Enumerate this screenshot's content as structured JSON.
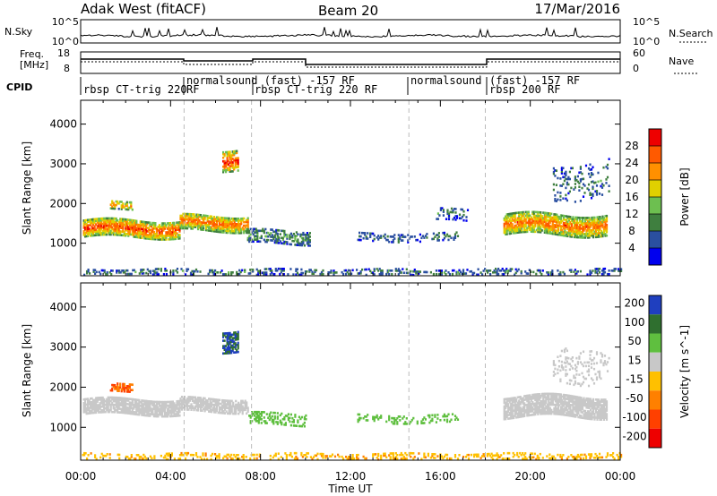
{
  "header": {
    "station": "Adak West (fitACF)",
    "beam": "Beam 20",
    "date": "17/Mar/2016"
  },
  "sky_panel": {
    "left_label": "N.Sky",
    "right_label": "N.Search",
    "left_ticks": [
      "10^5",
      "10^0"
    ],
    "right_ticks": [
      "10^5",
      "10^0"
    ],
    "line_color": "#000000"
  },
  "freq_panel": {
    "left_label_top": "Freq.",
    "left_label_bottom": "[MHz]",
    "left_ticks": [
      "18",
      "8"
    ],
    "right_ticks": [
      "60",
      "0"
    ],
    "right_label": "Nave"
  },
  "cpid": {
    "label": "CPID",
    "segments": [
      {
        "text": "rbsp CT-trig 220",
        "start": 0.2,
        "end": 4.6
      },
      {
        "text": "normalsound (fast) -157 RF",
        "start": 4.6,
        "end": 7.6,
        "extra": "RF"
      },
      {
        "text": "rbsp CT-trig 220 RF",
        "start": 7.6,
        "end": 14.6
      },
      {
        "text": "normalsound",
        "start": 14.6,
        "end": 18.0
      },
      {
        "text": "(fast) -157 RF",
        "start": 18.0,
        "end": 24.0
      },
      {
        "text": "rbsp 200 RF",
        "start": 18.0,
        "end": 24.0
      }
    ]
  },
  "chart_data": [
    {
      "type": "heatmap",
      "name": "power-panel",
      "ylabel": "Slant Range [km]",
      "xlabel": "Time UT",
      "x_range": [
        0,
        24
      ],
      "y_range": [
        180,
        4600
      ],
      "y_ticks": [
        1000,
        2000,
        3000,
        4000
      ],
      "x_ticks": [
        "00:00",
        "04:00",
        "08:00",
        "12:00",
        "16:00",
        "20:00",
        "00:00"
      ],
      "mode_boundaries_ut": [
        4.6,
        7.6,
        14.6,
        18.0
      ],
      "colorbar": {
        "label": "Power [dB]",
        "ticks": [
          4,
          8,
          12,
          16,
          20,
          24,
          28
        ],
        "range": [
          0,
          32
        ],
        "colors": [
          "#0000ee",
          "#2a4fa0",
          "#3f7f3f",
          "#6dbf50",
          "#e0d000",
          "#ff9000",
          "#ff5a00",
          "#ee0000"
        ]
      },
      "regions": [
        {
          "t0": 0.1,
          "t1": 4.4,
          "r_center": 1350,
          "r_width": 420,
          "level": 24,
          "density": 0.85
        },
        {
          "t0": 1.3,
          "t1": 2.3,
          "r_center": 1950,
          "r_width": 200,
          "level": 20,
          "density": 0.55
        },
        {
          "t0": 4.4,
          "t1": 7.4,
          "r_center": 1500,
          "r_width": 400,
          "level": 22,
          "density": 0.8
        },
        {
          "t0": 6.3,
          "t1": 7.0,
          "r_center": 3100,
          "r_width": 500,
          "level": 26,
          "density": 0.7
        },
        {
          "t0": 7.4,
          "t1": 10.2,
          "r_center": 1150,
          "r_width": 350,
          "level": 10,
          "density": 0.45
        },
        {
          "t0": 12.3,
          "t1": 16.8,
          "r_center": 1150,
          "r_width": 220,
          "level": 8,
          "density": 0.25
        },
        {
          "t0": 15.8,
          "t1": 17.2,
          "r_center": 1700,
          "r_width": 300,
          "level": 8,
          "density": 0.25
        },
        {
          "t0": 18.8,
          "t1": 23.4,
          "r_center": 1450,
          "r_width": 500,
          "level": 22,
          "density": 0.8
        },
        {
          "t0": 21.0,
          "t1": 23.5,
          "r_center": 2600,
          "r_width": 900,
          "level": 8,
          "density": 0.15
        },
        {
          "t0": 0.0,
          "t1": 24.0,
          "r_center": 260,
          "r_width": 160,
          "level": 8,
          "density": 0.3
        }
      ]
    },
    {
      "type": "heatmap",
      "name": "velocity-panel",
      "ylabel": "Slant Range [km]",
      "xlabel": "Time UT",
      "x_range": [
        0,
        24
      ],
      "y_range": [
        180,
        4600
      ],
      "y_ticks": [
        1000,
        2000,
        3000,
        4000
      ],
      "x_ticks": [
        "00:00",
        "04:00",
        "08:00",
        "12:00",
        "16:00",
        "20:00",
        "00:00"
      ],
      "mode_boundaries_ut": [
        4.6,
        7.6,
        14.6,
        18.0
      ],
      "colorbar": {
        "label": "Velocity [m s^-1]",
        "ticks": [
          200,
          100,
          50,
          15,
          -15,
          -50,
          -100,
          -200
        ],
        "colors": [
          "#1f3fbf",
          "#2f6f2f",
          "#5fbf3f",
          "#c8c8c8",
          "#ffc000",
          "#ff8000",
          "#ff4000",
          "#ee0000"
        ]
      },
      "regions": [
        {
          "t0": 0.1,
          "t1": 4.4,
          "r_center": 1500,
          "r_width": 380,
          "level": 0,
          "density": 0.85
        },
        {
          "t0": 1.3,
          "t1": 2.3,
          "r_center": 2000,
          "r_width": 220,
          "level": -100,
          "density": 0.55
        },
        {
          "t0": 4.4,
          "t1": 7.4,
          "r_center": 1550,
          "r_width": 350,
          "level": 0,
          "density": 0.75
        },
        {
          "t0": 6.3,
          "t1": 7.0,
          "r_center": 3150,
          "r_width": 500,
          "level": 150,
          "density": 0.7
        },
        {
          "t0": 7.4,
          "t1": 10.0,
          "r_center": 1200,
          "r_width": 300,
          "level": 40,
          "density": 0.4
        },
        {
          "t0": 12.3,
          "t1": 16.8,
          "r_center": 1200,
          "r_width": 200,
          "level": 40,
          "density": 0.25
        },
        {
          "t0": 18.8,
          "t1": 23.4,
          "r_center": 1500,
          "r_width": 500,
          "level": 0,
          "density": 0.8
        },
        {
          "t0": 21.0,
          "t1": 23.5,
          "r_center": 2600,
          "r_width": 900,
          "level": 0,
          "density": 0.15
        },
        {
          "t0": 0.0,
          "t1": 24.0,
          "r_center": 260,
          "r_width": 160,
          "level": -40,
          "density": 0.3
        }
      ]
    }
  ]
}
